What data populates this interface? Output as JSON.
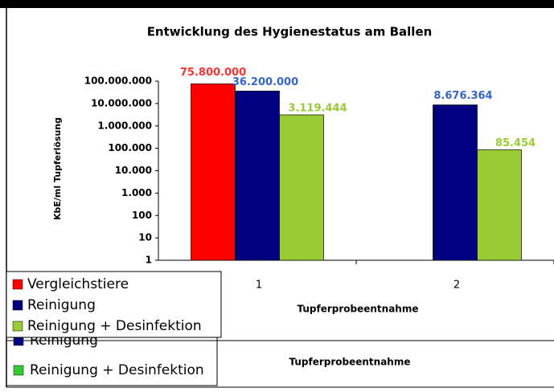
{
  "chart_data": {
    "type": "bar",
    "title": "Entwicklung des Hygienestatus am Ballen",
    "x_label": "Tupferprobeentnahme",
    "y_label": "KbE/ml Tupferlösung",
    "categories": [
      "1",
      "2"
    ],
    "log_scale": true,
    "series": [
      {
        "name": "Vergleichstiere",
        "color": "#ff0000",
        "values": [
          75800000,
          null
        ],
        "value_labels": [
          "75.800.000",
          null
        ]
      },
      {
        "name": "Reinigung",
        "color": "#000080",
        "values": [
          36200000,
          8676364
        ],
        "value_labels": [
          "36.200.000",
          "8.676.364"
        ]
      },
      {
        "name": "Reinigung + Desinfektion",
        "color": "#99cc33",
        "values": [
          3119444,
          85454
        ],
        "value_labels": [
          "3.119.444",
          "85.454"
        ]
      }
    ],
    "value_label_colors": [
      "#ff3333",
      "#3366cc",
      "#99cc33"
    ],
    "ylim": [
      1,
      100000000
    ],
    "yticks": [
      1,
      10,
      100,
      {
        "value": 1000,
        "label": "1.000"
      },
      {
        "value": 10000,
        "label": "10.000"
      },
      {
        "value": 100000,
        "label": "100.000"
      },
      {
        "value": 1000000,
        "label": "1.000.000"
      },
      {
        "value": 10000000,
        "label": "10.000.000"
      },
      {
        "value": 100000000,
        "label": "100.000.000"
      }
    ],
    "grid": false,
    "legend": "bottom-left"
  },
  "overlay": {
    "legend": [
      {
        "name": "Reinigung",
        "color": "#000080"
      },
      {
        "name": "Reinigung + Desinfektion",
        "color": "#33cc33"
      }
    ],
    "x_label": "Tupferprobeentnahme"
  }
}
